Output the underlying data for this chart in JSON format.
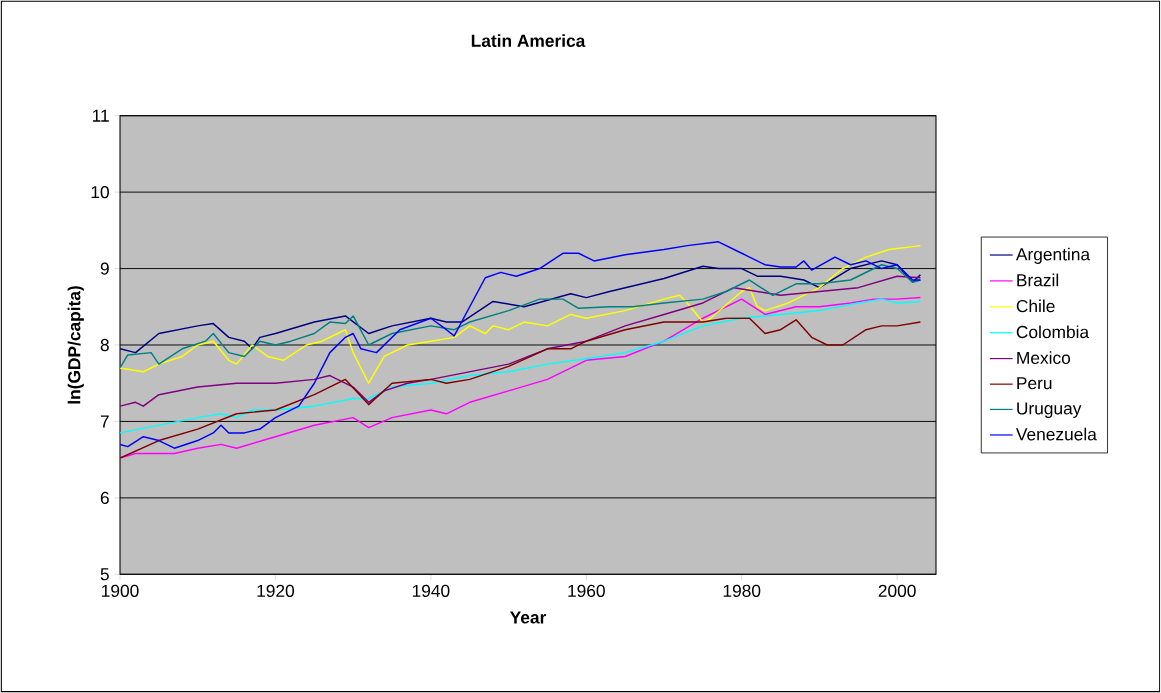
{
  "chart_data": {
    "type": "line",
    "title": "Latin America",
    "xlabel": "Year",
    "ylabel": "ln(GDP/capita)",
    "xlim": [
      1900,
      2005
    ],
    "xticks": [
      1900,
      1920,
      1940,
      1960,
      1980,
      2000
    ],
    "ylim": [
      5,
      11
    ],
    "yticks": [
      5,
      6,
      7,
      8,
      9,
      10,
      11
    ],
    "grid": "y",
    "legend": "right",
    "marker": "none",
    "line_style": "solid",
    "series": [
      {
        "name": "Argentina",
        "color": "#000080",
        "x": [
          1900,
          1902,
          1905,
          1910,
          1912,
          1914,
          1916,
          1917,
          1918,
          1920,
          1925,
          1929,
          1932,
          1935,
          1940,
          1942,
          1944,
          1948,
          1952,
          1958,
          1960,
          1963,
          1970,
          1975,
          1977,
          1980,
          1982,
          1985,
          1988,
          1990,
          1994,
          1998,
          2000,
          2002,
          2003
        ],
        "values": [
          7.95,
          7.9,
          8.15,
          8.25,
          8.28,
          8.1,
          8.05,
          7.95,
          8.1,
          8.15,
          8.3,
          8.38,
          8.15,
          8.25,
          8.35,
          8.3,
          8.3,
          8.57,
          8.5,
          8.67,
          8.62,
          8.7,
          8.87,
          9.03,
          9.0,
          9.0,
          8.9,
          8.9,
          8.85,
          8.75,
          9.0,
          9.1,
          9.05,
          8.82,
          8.92
        ]
      },
      {
        "name": "Brazil",
        "color": "#ff00ff",
        "x": [
          1900,
          1902,
          1907,
          1910,
          1913,
          1915,
          1920,
          1925,
          1930,
          1932,
          1935,
          1940,
          1942,
          1945,
          1950,
          1955,
          1960,
          1965,
          1970,
          1975,
          1980,
          1983,
          1987,
          1990,
          1994,
          1997,
          2000,
          2003
        ],
        "values": [
          6.52,
          6.58,
          6.58,
          6.65,
          6.7,
          6.65,
          6.8,
          6.95,
          7.05,
          6.92,
          7.05,
          7.15,
          7.1,
          7.25,
          7.4,
          7.55,
          7.8,
          7.85,
          8.05,
          8.35,
          8.6,
          8.4,
          8.5,
          8.5,
          8.55,
          8.6,
          8.6,
          8.62
        ]
      },
      {
        "name": "Chile",
        "color": "#ffff00",
        "x": [
          1900,
          1903,
          1905,
          1908,
          1910,
          1912,
          1914,
          1915,
          1917,
          1919,
          1921,
          1924,
          1926,
          1928,
          1929,
          1930,
          1932,
          1934,
          1937,
          1940,
          1943,
          1945,
          1947,
          1948,
          1950,
          1952,
          1955,
          1958,
          1960,
          1965,
          1970,
          1972,
          1973,
          1975,
          1976,
          1980,
          1981,
          1982,
          1983,
          1986,
          1990,
          1993,
          1996,
          1999,
          2003
        ],
        "values": [
          7.7,
          7.65,
          7.75,
          7.85,
          8.0,
          8.05,
          7.8,
          7.75,
          8.0,
          7.85,
          7.8,
          8.0,
          8.05,
          8.15,
          8.2,
          7.9,
          7.5,
          7.85,
          8.0,
          8.05,
          8.1,
          8.25,
          8.15,
          8.25,
          8.2,
          8.3,
          8.25,
          8.4,
          8.35,
          8.45,
          8.6,
          8.65,
          8.55,
          8.3,
          8.35,
          8.7,
          8.75,
          8.5,
          8.45,
          8.55,
          8.75,
          9.0,
          9.15,
          9.25,
          9.3
        ]
      },
      {
        "name": "Colombia",
        "color": "#00ffff",
        "x": [
          1900,
          1905,
          1910,
          1913,
          1915,
          1917,
          1920,
          1925,
          1930,
          1932,
          1935,
          1940,
          1945,
          1950,
          1955,
          1960,
          1965,
          1970,
          1975,
          1980,
          1985,
          1990,
          1995,
          1998,
          2000,
          2003
        ],
        "values": [
          6.85,
          6.95,
          7.05,
          7.1,
          7.05,
          7.15,
          7.15,
          7.2,
          7.3,
          7.3,
          7.45,
          7.5,
          7.6,
          7.65,
          7.75,
          7.82,
          7.9,
          8.05,
          8.25,
          8.35,
          8.4,
          8.45,
          8.55,
          8.6,
          8.55,
          8.57
        ]
      },
      {
        "name": "Mexico",
        "color": "#800080",
        "x": [
          1900,
          1902,
          1903,
          1905,
          1910,
          1915,
          1920,
          1925,
          1927,
          1930,
          1932,
          1934,
          1937,
          1940,
          1945,
          1950,
          1955,
          1960,
          1965,
          1970,
          1975,
          1979,
          1982,
          1985,
          1990,
          1995,
          2000,
          2003
        ],
        "values": [
          7.2,
          7.25,
          7.2,
          7.35,
          7.45,
          7.5,
          7.5,
          7.55,
          7.6,
          7.45,
          7.25,
          7.4,
          7.5,
          7.55,
          7.65,
          7.75,
          7.95,
          8.05,
          8.25,
          8.4,
          8.55,
          8.75,
          8.7,
          8.65,
          8.7,
          8.75,
          8.9,
          8.88
        ]
      },
      {
        "name": "Peru",
        "color": "#800000",
        "x": [
          1900,
          1905,
          1910,
          1915,
          1920,
          1925,
          1929,
          1932,
          1935,
          1940,
          1942,
          1945,
          1950,
          1955,
          1958,
          1960,
          1965,
          1970,
          1975,
          1978,
          1981,
          1983,
          1985,
          1987,
          1989,
          1991,
          1993,
          1996,
          1998,
          2000,
          2003
        ],
        "values": [
          6.52,
          6.75,
          6.9,
          7.1,
          7.15,
          7.35,
          7.55,
          7.22,
          7.5,
          7.55,
          7.5,
          7.55,
          7.72,
          7.95,
          7.95,
          8.05,
          8.2,
          8.3,
          8.3,
          8.35,
          8.35,
          8.15,
          8.2,
          8.33,
          8.1,
          8.0,
          8.0,
          8.2,
          8.25,
          8.25,
          8.3
        ]
      },
      {
        "name": "Uruguay",
        "color": "#008080",
        "x": [
          1900,
          1901,
          1904,
          1905,
          1908,
          1911,
          1912,
          1914,
          1916,
          1918,
          1920,
          1922,
          1925,
          1927,
          1929,
          1930,
          1932,
          1935,
          1940,
          1943,
          1945,
          1950,
          1954,
          1957,
          1959,
          1963,
          1966,
          1970,
          1975,
          1978,
          1981,
          1984,
          1987,
          1990,
          1994,
          1998,
          2000,
          2002,
          2003
        ],
        "values": [
          7.7,
          7.87,
          7.9,
          7.75,
          7.95,
          8.05,
          8.15,
          7.9,
          7.85,
          8.05,
          8.0,
          8.05,
          8.15,
          8.3,
          8.28,
          8.38,
          8.0,
          8.15,
          8.25,
          8.2,
          8.3,
          8.45,
          8.6,
          8.6,
          8.48,
          8.5,
          8.5,
          8.55,
          8.6,
          8.7,
          8.85,
          8.65,
          8.8,
          8.8,
          8.85,
          9.05,
          9.0,
          8.82,
          8.85
        ]
      },
      {
        "name": "Venezuela",
        "color": "#0000ff",
        "x": [
          1900,
          1901,
          1903,
          1905,
          1907,
          1910,
          1912,
          1913,
          1914,
          1916,
          1918,
          1920,
          1923,
          1925,
          1927,
          1929,
          1930,
          1931,
          1933,
          1936,
          1940,
          1942,
          1943,
          1945,
          1947,
          1949,
          1951,
          1954,
          1957,
          1959,
          1961,
          1965,
          1970,
          1973,
          1977,
          1980,
          1983,
          1985,
          1987,
          1988,
          1989,
          1992,
          1994,
          1996,
          1998,
          2000,
          2002,
          2003
        ],
        "values": [
          6.7,
          6.67,
          6.8,
          6.75,
          6.65,
          6.75,
          6.85,
          6.95,
          6.85,
          6.85,
          6.9,
          7.05,
          7.2,
          7.5,
          7.9,
          8.1,
          8.15,
          7.95,
          7.9,
          8.2,
          8.35,
          8.2,
          8.12,
          8.5,
          8.88,
          8.95,
          8.9,
          9.0,
          9.2,
          9.2,
          9.1,
          9.18,
          9.25,
          9.3,
          9.35,
          9.2,
          9.05,
          9.02,
          9.02,
          9.1,
          8.98,
          9.15,
          9.05,
          9.1,
          9.0,
          9.05,
          8.85,
          8.85
        ]
      }
    ]
  }
}
